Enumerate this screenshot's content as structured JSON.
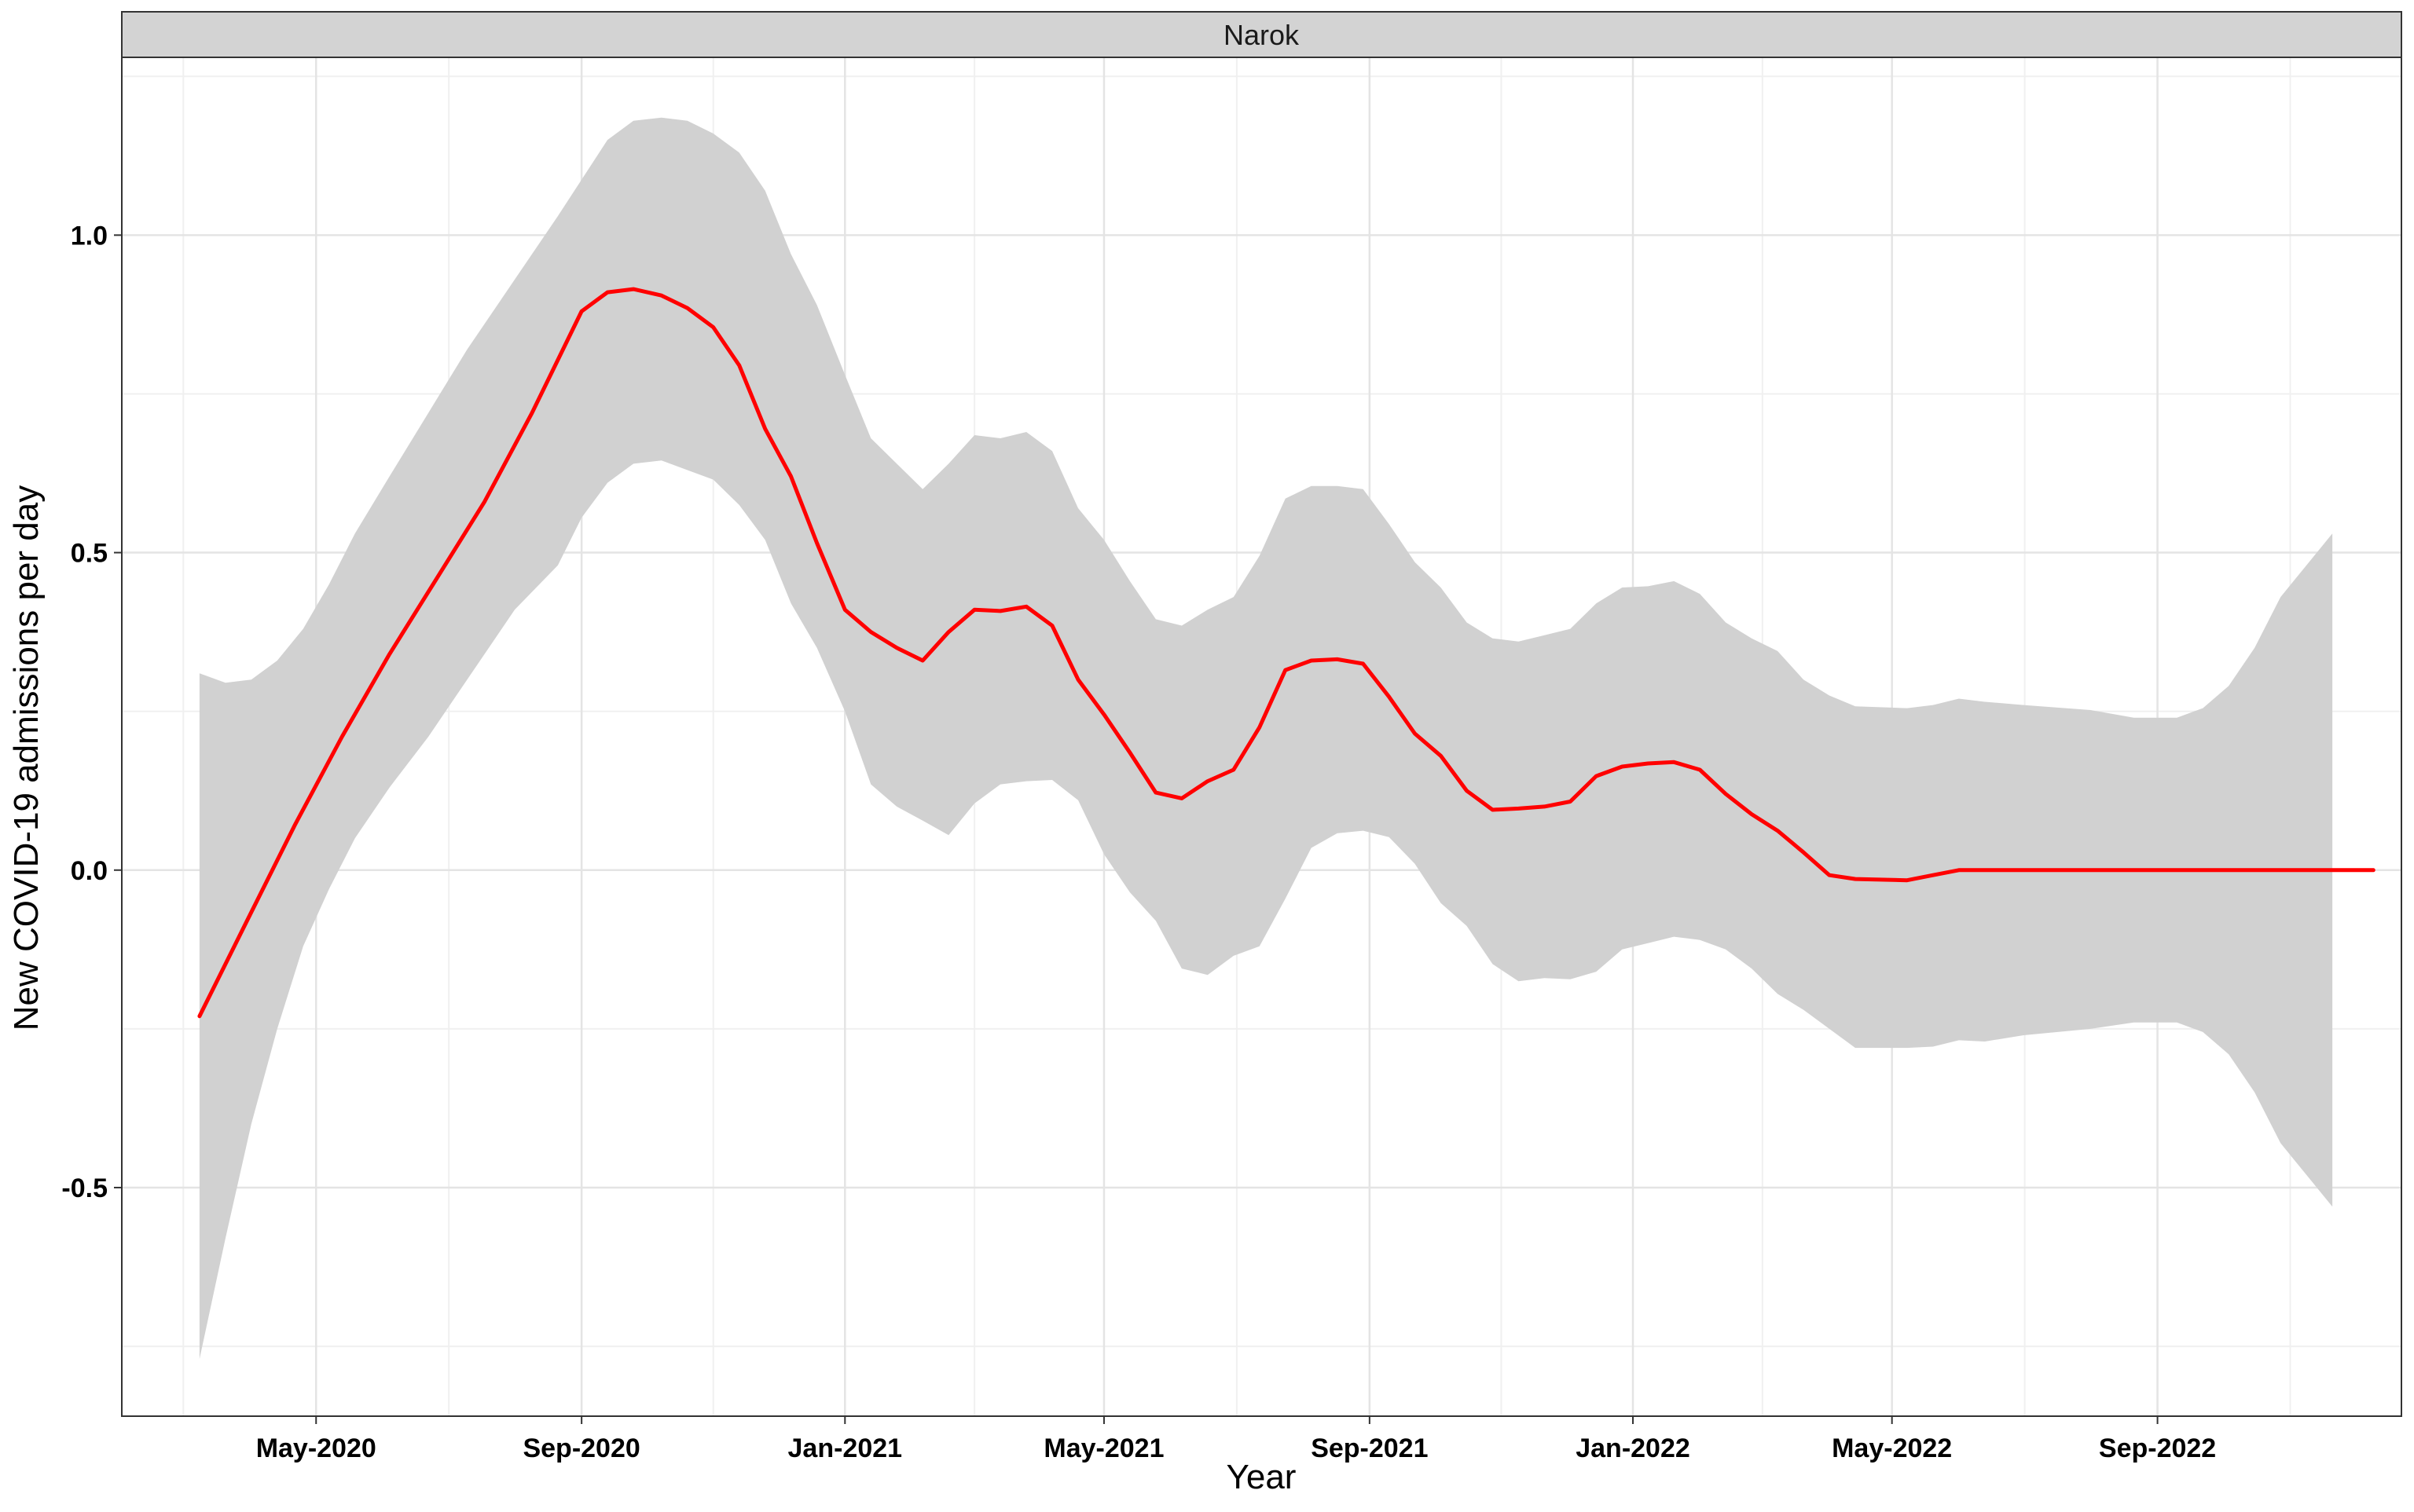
{
  "chart_data": {
    "type": "line",
    "panel_title": "Narok",
    "xlabel": "Year",
    "ylabel": "New COVID-19 admissions per day",
    "x_ticks": [
      "May-2020",
      "Sep-2020",
      "Jan-2021",
      "May-2021",
      "Sep-2021",
      "Jan-2022",
      "May-2022",
      "Sep-2022"
    ],
    "y_ticks": [
      "-0.5",
      "0.0",
      "0.5",
      "1.0"
    ],
    "y_tick_values": [
      -0.5,
      0.0,
      0.5,
      1.0
    ],
    "xlim": [
      "2020-02-01",
      "2022-12-23"
    ],
    "ylim": [
      -0.86,
      1.28
    ],
    "grid": true,
    "series": [
      {
        "values": [
          [
            "2020-03-08",
            -0.23
          ],
          [
            "2020-03-30",
            -0.08
          ],
          [
            "2020-04-21",
            0.07
          ],
          [
            "2020-05-13",
            0.21
          ],
          [
            "2020-06-04",
            0.34
          ],
          [
            "2020-06-26",
            0.46
          ],
          [
            "2020-07-18",
            0.58
          ],
          [
            "2020-08-09",
            0.72
          ],
          [
            "2020-09-01",
            0.88
          ],
          [
            "2020-09-13",
            0.91
          ],
          [
            "2020-09-25",
            0.915
          ],
          [
            "2020-10-08",
            0.905
          ],
          [
            "2020-10-20",
            0.885
          ],
          [
            "2020-11-01",
            0.855
          ],
          [
            "2020-11-13",
            0.795
          ],
          [
            "2020-11-25",
            0.695
          ],
          [
            "2020-12-07",
            0.62
          ],
          [
            "2020-12-19",
            0.515
          ],
          [
            "2021-01-01",
            0.41
          ],
          [
            "2021-01-13",
            0.375
          ],
          [
            "2021-01-25",
            0.35
          ],
          [
            "2021-02-06",
            0.33
          ],
          [
            "2021-02-18",
            0.375
          ],
          [
            "2021-03-02",
            0.41
          ],
          [
            "2021-03-14",
            0.408
          ],
          [
            "2021-03-26",
            0.415
          ],
          [
            "2021-04-07",
            0.385
          ],
          [
            "2021-04-19",
            0.3
          ],
          [
            "2021-05-01",
            0.245
          ],
          [
            "2021-05-13",
            0.185
          ],
          [
            "2021-05-25",
            0.122
          ],
          [
            "2021-06-06",
            0.113
          ],
          [
            "2021-06-18",
            0.14
          ],
          [
            "2021-06-30",
            0.158
          ],
          [
            "2021-07-12",
            0.225
          ],
          [
            "2021-07-24",
            0.315
          ],
          [
            "2021-08-05",
            0.33
          ],
          [
            "2021-08-17",
            0.332
          ],
          [
            "2021-08-29",
            0.325
          ],
          [
            "2021-09-10",
            0.273
          ],
          [
            "2021-09-22",
            0.215
          ],
          [
            "2021-10-04",
            0.18
          ],
          [
            "2021-10-16",
            0.125
          ],
          [
            "2021-10-28",
            0.095
          ],
          [
            "2021-11-09",
            0.097
          ],
          [
            "2021-11-21",
            0.1
          ],
          [
            "2021-12-03",
            0.108
          ],
          [
            "2021-12-15",
            0.148
          ],
          [
            "2021-12-27",
            0.163
          ],
          [
            "2022-01-08",
            0.168
          ],
          [
            "2022-01-20",
            0.17
          ],
          [
            "2022-02-01",
            0.158
          ],
          [
            "2022-02-13",
            0.12
          ],
          [
            "2022-02-25",
            0.088
          ],
          [
            "2022-03-09",
            0.062
          ],
          [
            "2022-03-21",
            0.028
          ],
          [
            "2022-04-02",
            -0.008
          ],
          [
            "2022-04-14",
            -0.014
          ],
          [
            "2022-05-08",
            -0.016
          ],
          [
            "2022-05-20",
            -0.008
          ],
          [
            "2022-06-01",
            0.0
          ],
          [
            "2022-09-01",
            0.0
          ],
          [
            "2022-12-10",
            0.0
          ]
        ],
        "ribbon_upper": [
          [
            "2020-03-08",
            0.31
          ],
          [
            "2020-03-20",
            0.295
          ],
          [
            "2020-04-01",
            0.3
          ],
          [
            "2020-04-13",
            0.33
          ],
          [
            "2020-04-25",
            0.38
          ],
          [
            "2020-05-07",
            0.45
          ],
          [
            "2020-05-19",
            0.53
          ],
          [
            "2020-06-04",
            0.62
          ],
          [
            "2020-06-22",
            0.72
          ],
          [
            "2020-07-10",
            0.82
          ],
          [
            "2020-08-01",
            0.93
          ],
          [
            "2020-08-21",
            1.03
          ],
          [
            "2020-09-13",
            1.15
          ],
          [
            "2020-09-25",
            1.18
          ],
          [
            "2020-10-08",
            1.185
          ],
          [
            "2020-10-20",
            1.18
          ],
          [
            "2020-11-01",
            1.16
          ],
          [
            "2020-11-13",
            1.13
          ],
          [
            "2020-11-25",
            1.07
          ],
          [
            "2020-12-07",
            0.97
          ],
          [
            "2020-12-19",
            0.89
          ],
          [
            "2021-01-01",
            0.78
          ],
          [
            "2021-01-13",
            0.68
          ],
          [
            "2021-01-25",
            0.64
          ],
          [
            "2021-02-06",
            0.6
          ],
          [
            "2021-02-18",
            0.64
          ],
          [
            "2021-03-02",
            0.685
          ],
          [
            "2021-03-14",
            0.68
          ],
          [
            "2021-03-26",
            0.69
          ],
          [
            "2021-04-07",
            0.66
          ],
          [
            "2021-04-19",
            0.57
          ],
          [
            "2021-05-01",
            0.52
          ],
          [
            "2021-05-13",
            0.455
          ],
          [
            "2021-05-25",
            0.395
          ],
          [
            "2021-06-06",
            0.385
          ],
          [
            "2021-06-18",
            0.41
          ],
          [
            "2021-06-30",
            0.43
          ],
          [
            "2021-07-12",
            0.495
          ],
          [
            "2021-07-24",
            0.585
          ],
          [
            "2021-08-05",
            0.605
          ],
          [
            "2021-08-17",
            0.605
          ],
          [
            "2021-08-29",
            0.6
          ],
          [
            "2021-09-10",
            0.545
          ],
          [
            "2021-09-22",
            0.485
          ],
          [
            "2021-10-04",
            0.445
          ],
          [
            "2021-10-16",
            0.39
          ],
          [
            "2021-10-28",
            0.365
          ],
          [
            "2021-11-09",
            0.36
          ],
          [
            "2021-11-21",
            0.37
          ],
          [
            "2021-12-03",
            0.38
          ],
          [
            "2021-12-15",
            0.42
          ],
          [
            "2021-12-27",
            0.445
          ],
          [
            "2022-01-08",
            0.447
          ],
          [
            "2022-01-20",
            0.455
          ],
          [
            "2022-02-01",
            0.435
          ],
          [
            "2022-02-13",
            0.39
          ],
          [
            "2022-02-25",
            0.365
          ],
          [
            "2022-03-09",
            0.345
          ],
          [
            "2022-03-21",
            0.3
          ],
          [
            "2022-04-02",
            0.275
          ],
          [
            "2022-04-14",
            0.258
          ],
          [
            "2022-05-08",
            0.255
          ],
          [
            "2022-05-20",
            0.26
          ],
          [
            "2022-06-01",
            0.27
          ],
          [
            "2022-06-13",
            0.265
          ],
          [
            "2022-07-01",
            0.26
          ],
          [
            "2022-08-01",
            0.252
          ],
          [
            "2022-08-21",
            0.24
          ],
          [
            "2022-09-10",
            0.24
          ],
          [
            "2022-09-22",
            0.255
          ],
          [
            "2022-10-04",
            0.29
          ],
          [
            "2022-10-16",
            0.35
          ],
          [
            "2022-10-28",
            0.43
          ],
          [
            "2022-11-09",
            0.48
          ],
          [
            "2022-11-21",
            0.53
          ]
        ],
        "ribbon_lower": [
          [
            "2020-03-08",
            -0.77
          ],
          [
            "2020-03-20",
            -0.58
          ],
          [
            "2020-04-01",
            -0.4
          ],
          [
            "2020-04-13",
            -0.25
          ],
          [
            "2020-04-25",
            -0.12
          ],
          [
            "2020-05-07",
            -0.03
          ],
          [
            "2020-05-19",
            0.05
          ],
          [
            "2020-06-04",
            0.13
          ],
          [
            "2020-06-22",
            0.21
          ],
          [
            "2020-07-10",
            0.3
          ],
          [
            "2020-08-01",
            0.41
          ],
          [
            "2020-08-21",
            0.48
          ],
          [
            "2020-09-01",
            0.555
          ],
          [
            "2020-09-13",
            0.61
          ],
          [
            "2020-09-25",
            0.64
          ],
          [
            "2020-10-08",
            0.645
          ],
          [
            "2020-10-20",
            0.63
          ],
          [
            "2020-11-01",
            0.615
          ],
          [
            "2020-11-13",
            0.575
          ],
          [
            "2020-11-25",
            0.52
          ],
          [
            "2020-12-07",
            0.42
          ],
          [
            "2020-12-19",
            0.35
          ],
          [
            "2021-01-01",
            0.25
          ],
          [
            "2021-01-13",
            0.135
          ],
          [
            "2021-01-25",
            0.1
          ],
          [
            "2021-02-06",
            0.078
          ],
          [
            "2021-02-18",
            0.055
          ],
          [
            "2021-03-02",
            0.105
          ],
          [
            "2021-03-14",
            0.135
          ],
          [
            "2021-03-26",
            0.14
          ],
          [
            "2021-04-07",
            0.142
          ],
          [
            "2021-04-19",
            0.11
          ],
          [
            "2021-05-01",
            0.025
          ],
          [
            "2021-05-13",
            -0.035
          ],
          [
            "2021-05-25",
            -0.08
          ],
          [
            "2021-06-06",
            -0.155
          ],
          [
            "2021-06-18",
            -0.165
          ],
          [
            "2021-06-30",
            -0.135
          ],
          [
            "2021-07-12",
            -0.12
          ],
          [
            "2021-07-24",
            -0.045
          ],
          [
            "2021-08-05",
            0.035
          ],
          [
            "2021-08-17",
            0.058
          ],
          [
            "2021-08-29",
            0.062
          ],
          [
            "2021-09-10",
            0.052
          ],
          [
            "2021-09-22",
            0.01
          ],
          [
            "2021-10-04",
            -0.052
          ],
          [
            "2021-10-16",
            -0.088
          ],
          [
            "2021-10-28",
            -0.148
          ],
          [
            "2021-11-09",
            -0.175
          ],
          [
            "2021-11-21",
            -0.17
          ],
          [
            "2021-12-03",
            -0.172
          ],
          [
            "2021-12-15",
            -0.16
          ],
          [
            "2021-12-27",
            -0.125
          ],
          [
            "2022-01-08",
            -0.115
          ],
          [
            "2022-01-20",
            -0.105
          ],
          [
            "2022-02-01",
            -0.11
          ],
          [
            "2022-02-13",
            -0.125
          ],
          [
            "2022-02-25",
            -0.155
          ],
          [
            "2022-03-09",
            -0.195
          ],
          [
            "2022-03-21",
            -0.22
          ],
          [
            "2022-04-02",
            -0.25
          ],
          [
            "2022-04-14",
            -0.28
          ],
          [
            "2022-05-08",
            -0.28
          ],
          [
            "2022-05-20",
            -0.278
          ],
          [
            "2022-06-01",
            -0.268
          ],
          [
            "2022-06-13",
            -0.27
          ],
          [
            "2022-07-01",
            -0.26
          ],
          [
            "2022-08-01",
            -0.25
          ],
          [
            "2022-08-21",
            -0.24
          ],
          [
            "2022-09-10",
            -0.24
          ],
          [
            "2022-09-22",
            -0.255
          ],
          [
            "2022-10-04",
            -0.29
          ],
          [
            "2022-10-16",
            -0.35
          ],
          [
            "2022-10-28",
            -0.43
          ],
          [
            "2022-11-09",
            -0.48
          ],
          [
            "2022-11-21",
            -0.53
          ]
        ]
      }
    ]
  },
  "colors": {
    "line": "#ff0000",
    "ribbon": "#d1d1d1",
    "grid_major": "#e4e4e4",
    "grid_minor": "#f0f0f0",
    "strip_bg": "#d3d3d3",
    "border": "#333333"
  }
}
